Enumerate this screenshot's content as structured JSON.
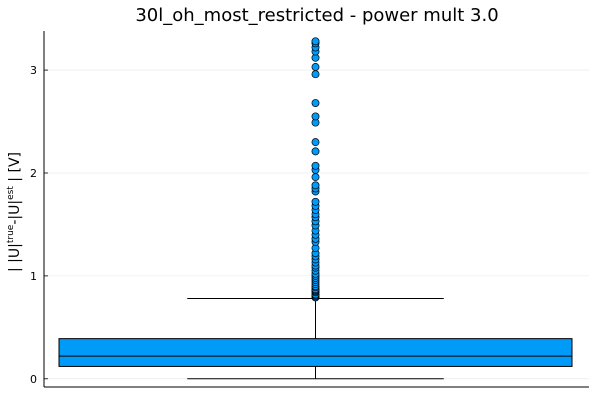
{
  "chart_data": {
    "type": "box",
    "title": "30l_oh_most_restricted - power mult 3.0",
    "ylabel_parts": [
      "| |U|",
      "true",
      "-|U|",
      "est",
      " | [V]"
    ],
    "ylim": [
      -0.08,
      3.38
    ],
    "yticks": [
      0,
      1,
      2,
      3
    ],
    "ytick_labels": [
      "0",
      "1",
      "2",
      "3"
    ],
    "grid": true,
    "legend": "none",
    "series": [
      {
        "color": "#009af9",
        "min": 0.0,
        "q1": 0.12,
        "median": 0.22,
        "q3": 0.39,
        "upper_whisker": 0.78,
        "outliers": [
          0.79,
          0.8,
          0.81,
          0.82,
          0.84,
          0.85,
          0.86,
          0.87,
          0.89,
          0.9,
          0.92,
          0.94,
          0.96,
          0.98,
          1.0,
          1.02,
          1.05,
          1.08,
          1.1,
          1.13,
          1.16,
          1.19,
          1.22,
          1.27,
          1.33,
          1.36,
          1.4,
          1.44,
          1.49,
          1.53,
          1.57,
          1.6,
          1.64,
          1.68,
          1.72,
          1.82,
          1.85,
          1.88,
          1.96,
          2.03,
          2.07,
          2.21,
          2.3,
          2.49,
          2.55,
          2.68,
          2.96,
          3.03,
          3.12,
          3.18,
          3.22,
          3.26,
          3.28
        ]
      }
    ]
  }
}
